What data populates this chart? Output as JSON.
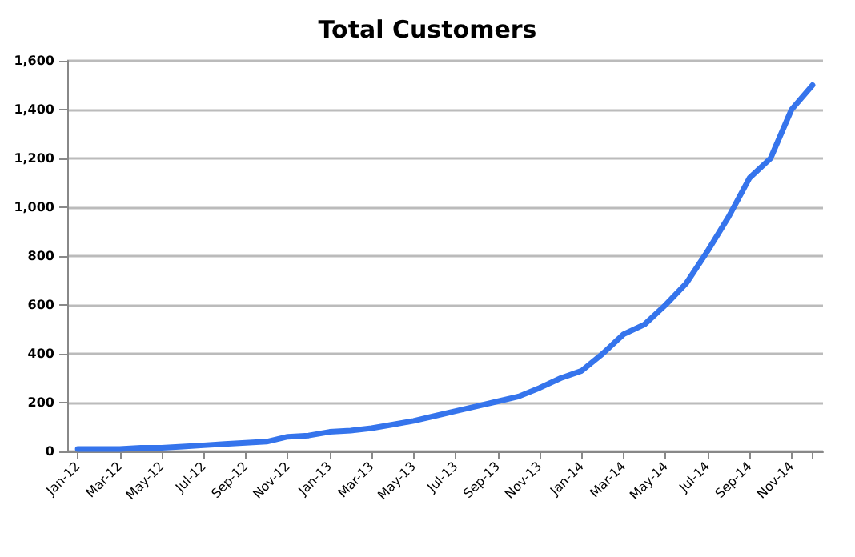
{
  "chart_data": {
    "type": "line",
    "title": "Total Customers",
    "categories": [
      "Jan-12",
      null,
      "Mar-12",
      null,
      "May-12",
      null,
      "Jul-12",
      null,
      "Sep-12",
      null,
      "Nov-12",
      null,
      "Jan-13",
      null,
      "Mar-13",
      null,
      "May-13",
      null,
      "Jul-13",
      null,
      "Sep-13",
      null,
      "Nov-13",
      null,
      "Jan-14",
      null,
      "Mar-14",
      null,
      "May-14",
      null,
      "Jul-14",
      null,
      "Sep-14",
      null,
      "Nov-14",
      null
    ],
    "series": [
      {
        "color": "#3574ec",
        "values": [
          10,
          10,
          10,
          15,
          15,
          20,
          25,
          30,
          35,
          40,
          60,
          65,
          80,
          85,
          95,
          110,
          125,
          145,
          165,
          185,
          205,
          225,
          260,
          300,
          330,
          400,
          480,
          520,
          600,
          690,
          820,
          960,
          1120,
          1200,
          1400,
          1500
        ]
      }
    ],
    "ylim": [
      0,
      1600
    ],
    "yticks": [
      0,
      200,
      400,
      600,
      800,
      {
        "value": 1000,
        "label": "1,000"
      },
      {
        "value": 1200,
        "label": "1,200"
      },
      {
        "value": 1400,
        "label": "1,400"
      },
      {
        "value": 1600,
        "label": "1,600"
      }
    ],
    "grid": "y",
    "marker": "none",
    "line_style": "solid"
  }
}
